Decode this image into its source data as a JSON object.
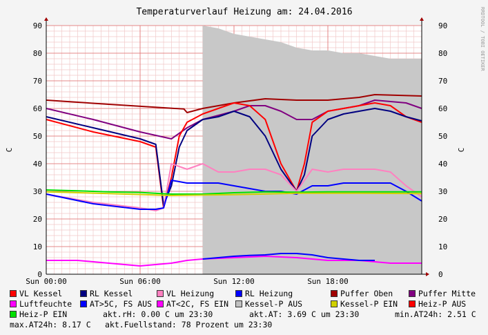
{
  "chart_data": {
    "type": "line",
    "title": "Temperaturverlauf Heizung am: 24.04.2016",
    "watermark": "RRDTOOL / TOBI OETIKER",
    "ylabel": "C",
    "ylabel_right": "C",
    "ylim": [
      0,
      90
    ],
    "yticks": [
      0,
      10,
      20,
      30,
      40,
      50,
      60,
      70,
      80,
      90
    ],
    "xlim": [
      0,
      24
    ],
    "xticks": [
      {
        "x": 0,
        "label": "Sun 00:00"
      },
      {
        "x": 6,
        "label": "Sun 06:00"
      },
      {
        "x": 12,
        "label": "Sun 12:00"
      },
      {
        "x": 18,
        "label": "Sun 18:00"
      }
    ],
    "grid": true,
    "legend_position": "bottom",
    "series": [
      {
        "name": "Kessel-P AUS",
        "color": "#c8c8c8",
        "kind": "area",
        "points": [
          [
            10,
            0
          ],
          [
            10,
            90
          ],
          [
            11,
            89
          ],
          [
            12,
            87
          ],
          [
            13,
            86
          ],
          [
            14,
            85
          ],
          [
            15,
            84
          ],
          [
            16,
            82
          ],
          [
            17,
            81
          ],
          [
            18,
            81
          ],
          [
            19,
            80
          ],
          [
            20,
            80
          ],
          [
            21,
            79
          ],
          [
            22,
            78
          ],
          [
            23,
            78
          ],
          [
            24,
            78
          ],
          [
            24,
            0
          ]
        ]
      },
      {
        "name": "Puffer Oben",
        "color": "#a00000",
        "kind": "line",
        "points": [
          [
            0,
            63
          ],
          [
            4,
            61.5
          ],
          [
            8.8,
            59.8
          ],
          [
            9,
            58.5
          ],
          [
            10,
            60
          ],
          [
            12,
            62
          ],
          [
            14,
            63.5
          ],
          [
            16,
            63
          ],
          [
            18,
            63
          ],
          [
            20,
            64
          ],
          [
            21,
            65
          ],
          [
            24,
            64.5
          ]
        ]
      },
      {
        "name": "Puffer Mitte",
        "color": "#800080",
        "kind": "line",
        "points": [
          [
            0,
            60
          ],
          [
            3,
            56
          ],
          [
            6,
            51.5
          ],
          [
            8,
            49
          ],
          [
            9,
            53
          ],
          [
            10,
            56
          ],
          [
            12,
            59
          ],
          [
            13,
            61
          ],
          [
            14,
            61
          ],
          [
            15,
            59
          ],
          [
            16,
            56
          ],
          [
            17,
            56
          ],
          [
            18,
            59
          ],
          [
            20,
            61
          ],
          [
            21,
            63
          ],
          [
            23,
            62
          ],
          [
            24,
            60
          ]
        ]
      },
      {
        "name": "VL Kessel",
        "color": "#ff0000",
        "kind": "line",
        "points": [
          [
            0,
            56
          ],
          [
            3,
            51.5
          ],
          [
            6,
            48
          ],
          [
            7,
            46
          ],
          [
            7.5,
            24
          ],
          [
            8,
            35
          ],
          [
            8.5,
            50
          ],
          [
            9,
            55
          ],
          [
            10,
            58
          ],
          [
            11,
            60
          ],
          [
            12,
            62
          ],
          [
            13,
            61
          ],
          [
            14,
            56
          ],
          [
            15,
            40
          ],
          [
            16,
            30
          ],
          [
            16.5,
            40
          ],
          [
            17,
            55
          ],
          [
            18,
            59
          ],
          [
            19,
            60
          ],
          [
            20,
            61
          ],
          [
            21,
            62
          ],
          [
            22,
            61
          ],
          [
            23,
            57
          ],
          [
            24,
            55
          ]
        ]
      },
      {
        "name": "RL Kessel",
        "color": "#000080",
        "kind": "line",
        "points": [
          [
            0,
            57
          ],
          [
            3,
            53
          ],
          [
            6,
            49
          ],
          [
            7,
            47
          ],
          [
            7.5,
            25
          ],
          [
            8,
            32
          ],
          [
            8.5,
            46
          ],
          [
            9,
            52
          ],
          [
            10,
            56
          ],
          [
            11,
            57
          ],
          [
            12,
            59
          ],
          [
            13,
            57
          ],
          [
            14,
            50
          ],
          [
            15,
            38
          ],
          [
            16,
            30
          ],
          [
            16.5,
            36
          ],
          [
            17,
            50
          ],
          [
            18,
            56
          ],
          [
            19,
            58
          ],
          [
            20,
            59
          ],
          [
            21,
            60
          ],
          [
            22,
            59
          ],
          [
            23,
            57
          ],
          [
            24,
            55.5
          ]
        ]
      },
      {
        "name": "VL Heizung",
        "color": "#ff80c0",
        "kind": "line",
        "points": [
          [
            0,
            29
          ],
          [
            3,
            26
          ],
          [
            6,
            24
          ],
          [
            7,
            23
          ],
          [
            7.5,
            24
          ],
          [
            8,
            40
          ],
          [
            9,
            38
          ],
          [
            10,
            40
          ],
          [
            11,
            37
          ],
          [
            12,
            37
          ],
          [
            13,
            38
          ],
          [
            14,
            38
          ],
          [
            15,
            36
          ],
          [
            16,
            30
          ],
          [
            17,
            38
          ],
          [
            18,
            37
          ],
          [
            19,
            38
          ],
          [
            20,
            38
          ],
          [
            21,
            38
          ],
          [
            22,
            37
          ],
          [
            23,
            32
          ],
          [
            24,
            28
          ]
        ]
      },
      {
        "name": "RL Heizung",
        "color": "#0000ff",
        "kind": "line",
        "points": [
          [
            0,
            29
          ],
          [
            3,
            25.5
          ],
          [
            6,
            23.5
          ],
          [
            7,
            23.5
          ],
          [
            7.5,
            24
          ],
          [
            8,
            34
          ],
          [
            9,
            33
          ],
          [
            10,
            33
          ],
          [
            11,
            33
          ],
          [
            12,
            32
          ],
          [
            13,
            31
          ],
          [
            14,
            30
          ],
          [
            15,
            30
          ],
          [
            16,
            29
          ],
          [
            17,
            32
          ],
          [
            18,
            32
          ],
          [
            19,
            33
          ],
          [
            20,
            33
          ],
          [
            21,
            33
          ],
          [
            22,
            33
          ],
          [
            23,
            30
          ],
          [
            24,
            26.5
          ]
        ]
      },
      {
        "name": "Heiz-P EIN",
        "color": "#00e000",
        "kind": "line",
        "points": [
          [
            0,
            30.5
          ],
          [
            2,
            30.2
          ],
          [
            4,
            29.8
          ],
          [
            6,
            29.6
          ],
          [
            8,
            29
          ],
          [
            10,
            29
          ],
          [
            12,
            29.5
          ],
          [
            14,
            29.8
          ],
          [
            16,
            29.7
          ],
          [
            18,
            29.8
          ],
          [
            20,
            29.8
          ],
          [
            22,
            29.8
          ],
          [
            24,
            29.8
          ]
        ]
      },
      {
        "name": "Kessel-P EIN",
        "color": "#d0d000",
        "kind": "line",
        "points": [
          [
            0,
            29.8
          ],
          [
            4,
            29.2
          ],
          [
            8,
            28.5
          ],
          [
            12,
            28.8
          ],
          [
            16,
            29.3
          ],
          [
            20,
            29.3
          ],
          [
            24,
            29.2
          ]
        ]
      },
      {
        "name": "Luftfeuchte",
        "color": "#ff00ff",
        "kind": "line",
        "points": [
          [
            0,
            5
          ],
          [
            2,
            5
          ],
          [
            4,
            4
          ],
          [
            6,
            3
          ],
          [
            8,
            4
          ],
          [
            9,
            5
          ],
          [
            10,
            5.5
          ],
          [
            12,
            6
          ],
          [
            14,
            6.5
          ],
          [
            16,
            6
          ],
          [
            18,
            5
          ],
          [
            20,
            5
          ],
          [
            22,
            4
          ],
          [
            24,
            4
          ]
        ]
      },
      {
        "name": "AT>5C, FS AUS",
        "color": "#0000ff",
        "kind": "line",
        "points": [
          [
            10,
            5.5
          ],
          [
            11,
            6
          ],
          [
            12,
            6.5
          ],
          [
            13,
            6.8
          ],
          [
            14,
            7
          ],
          [
            15,
            7.5
          ],
          [
            16,
            7.5
          ],
          [
            17,
            7
          ],
          [
            18,
            6
          ],
          [
            19,
            5.5
          ],
          [
            20,
            5
          ],
          [
            21,
            5
          ]
        ]
      },
      {
        "name": "AT<2C, FS EIN",
        "color": "#ff00ff",
        "kind": "line",
        "points": []
      },
      {
        "name": "Heiz-P AUS",
        "color": "#ff0000",
        "kind": "line",
        "points": []
      }
    ]
  },
  "legend": [
    {
      "label": "VL Kessel",
      "color": "#ff0000"
    },
    {
      "label": "RL Kessel",
      "color": "#000080"
    },
    {
      "label": "VL Heizung",
      "color": "#ff80c0"
    },
    {
      "label": "RL Heizung",
      "color": "#0000ff"
    },
    {
      "label": "Puffer Oben",
      "color": "#a00000"
    },
    {
      "label": "Puffer Mitte",
      "color": "#800080"
    },
    {
      "label": "Luftfeuchte",
      "color": "#ff00ff"
    },
    {
      "label": "AT>5C, FS AUS",
      "color": "#0000ff"
    },
    {
      "label": "AT<2C, FS EIN",
      "color": "#ff00ff"
    },
    {
      "label": "Kessel-P AUS",
      "color": "#c0c0c0"
    },
    {
      "label": "Kessel-P EIN",
      "color": "#d0d000"
    },
    {
      "label": "Heiz-P AUS",
      "color": "#ff0000"
    },
    {
      "label": "Heiz-P EIN",
      "color": "#00e000"
    }
  ],
  "stats": {
    "rh": "akt.rH: 0.00 C um 23:30",
    "at": "akt.AT: 3.69 C um 23:30",
    "min": "min.AT24h: 2.51 C",
    "max": "max.AT24h: 8.17 C",
    "fuell": "akt.Fuellstand:   78 Prozent um 23:30"
  }
}
